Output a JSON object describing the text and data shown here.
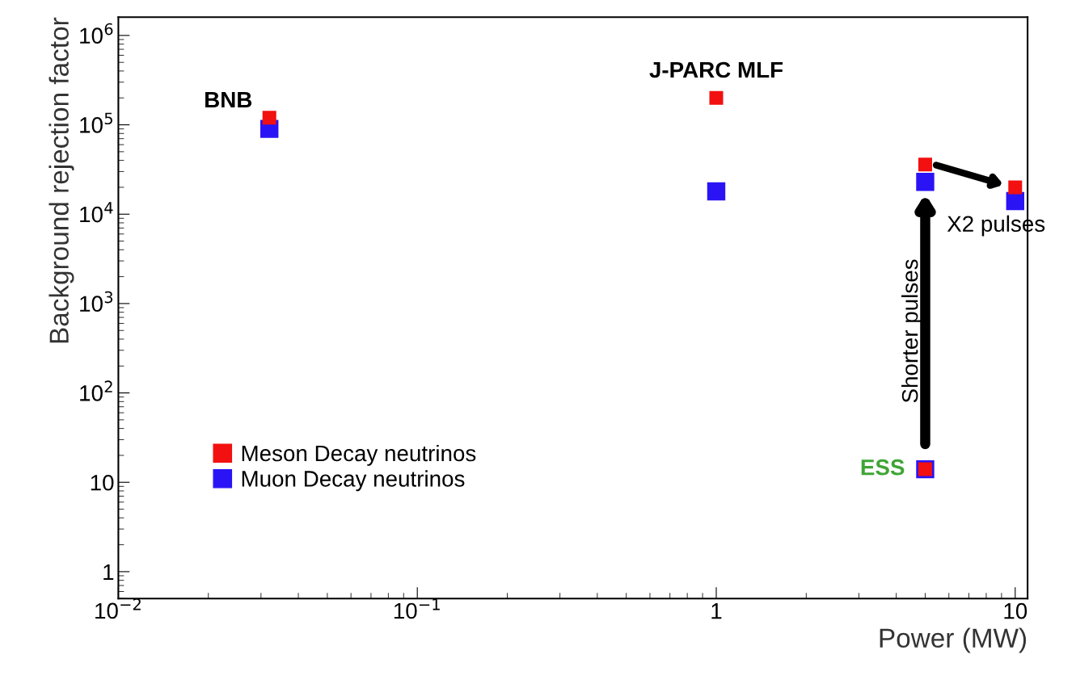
{
  "chart_data": {
    "type": "scatter",
    "xlabel": "Power (MW)",
    "ylabel": "Background rejection factor",
    "log": "xy",
    "marker": "square",
    "legend": "bottom left",
    "grid": false,
    "xlim": [
      0.01,
      11
    ],
    "ylim": [
      0.5,
      1600000
    ],
    "xticks": [
      {
        "value": 0.01,
        "label": "10$^{−2}$"
      },
      {
        "value": 0.1,
        "label": "10$^{−1}$"
      },
      1,
      10
    ],
    "yticks": [
      1,
      10,
      {
        "value": 100,
        "label": "10$^{2}$"
      },
      {
        "value": 1000,
        "label": "10$^{3}$"
      },
      {
        "value": 10000,
        "label": "10$^{4}$"
      },
      {
        "value": 100000,
        "label": "10$^{5}$"
      },
      {
        "value": 1000000,
        "label": "10$^{6}$"
      }
    ],
    "series": [
      {
        "name": "Muon Decay neutrinos",
        "color": "#2a14f5",
        "x": [
          0.032,
          1,
          5,
          5,
          10
        ],
        "values": [
          90000,
          18000,
          14,
          23000,
          14000
        ]
      },
      {
        "name": "Meson Decay neutrinos",
        "color": "#f21010",
        "x": [
          0.032,
          1,
          5,
          5,
          10
        ],
        "values": [
          120000,
          200000,
          14,
          36000,
          20000
        ]
      }
    ],
    "annotations": [
      {
        "text": "BNB",
        "x": 0.032,
        "y": 120000
      },
      {
        "text": "J-PARC MLF",
        "x": 1,
        "y": 200000
      },
      {
        "text": "ESS",
        "x": 5,
        "y": 14
      },
      "Shorter pulses",
      {
        "text": "X2 pulses",
        "x": 10,
        "y": 20000
      }
    ]
  }
}
